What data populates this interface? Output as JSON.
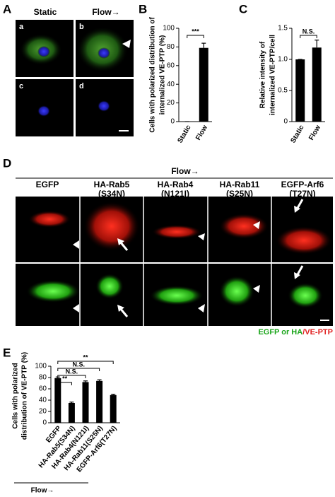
{
  "panel_labels": [
    "A",
    "B",
    "C",
    "D",
    "E"
  ],
  "panel_a": {
    "columns": [
      "Static",
      "Flow→"
    ],
    "subpanels": [
      "a",
      "b",
      "c",
      "d"
    ]
  },
  "panel_d": {
    "header": "Flow→",
    "columns": [
      [
        "EGFP"
      ],
      [
        "HA-Rab5",
        "(S34N)"
      ],
      [
        "HA-Rab4",
        "(N121I)"
      ],
      [
        "HA-Rab11",
        "(S25N)"
      ],
      [
        "EGFP-Arf6",
        "(T27N)"
      ]
    ],
    "legend": {
      "green": "EGFP or HA",
      "red": "/VE-PTP"
    }
  },
  "chart_data": [
    {
      "type": "bar",
      "y_label": [
        "Cells with polarized distribution of",
        "internalized VE-PTP (%)"
      ],
      "categories": [
        "Static",
        "Flow"
      ],
      "values": [
        0,
        79
      ],
      "errors": [
        0,
        5
      ],
      "color": "#000000",
      "ylim": [
        0,
        100
      ],
      "yticks": [
        0,
        20,
        40,
        60,
        80,
        100
      ],
      "annotations": [
        {
          "text": "***",
          "pair": [
            0,
            1
          ]
        }
      ]
    },
    {
      "type": "bar",
      "y_label": [
        "Relative intensity of",
        "internalized VE-PTP/cell"
      ],
      "categories": [
        "Static",
        "Flow"
      ],
      "values": [
        1.0,
        1.19
      ],
      "errors": [
        0,
        0.12
      ],
      "color": "#000000",
      "ylim": [
        0,
        1.5
      ],
      "yticks": [
        0,
        0.5,
        {
          "value": 1.0,
          "label": "1.0"
        },
        1.5
      ],
      "annotations": [
        {
          "text": "N.S.",
          "pair": [
            0,
            1
          ]
        }
      ]
    },
    {
      "type": "bar",
      "y_label": [
        "Cells with polarized",
        "distribution of VE-PTP (%)"
      ],
      "categories": [
        "EGFP",
        "HA-Rab5(S34N)",
        "HA-Rab4(N121I)",
        "HA-Rab11(S25N)",
        "EGFP-Arf6(T27N)"
      ],
      "values": [
        79,
        35,
        72,
        74,
        49
      ],
      "errors": [
        2,
        1.5,
        2,
        2,
        1.5
      ],
      "color": "#000000",
      "ylim": [
        0,
        100
      ],
      "yticks": [
        0,
        20,
        40,
        60,
        80,
        100
      ],
      "annotations": [
        {
          "text": "**",
          "pair": [
            0,
            1
          ]
        },
        {
          "text": "N.S.",
          "pair": [
            0,
            2
          ]
        },
        {
          "text": "N.S.",
          "pair": [
            0,
            3
          ]
        },
        {
          "text": "**",
          "pair": [
            0,
            4
          ]
        }
      ],
      "x_footer": "Flow→"
    }
  ]
}
